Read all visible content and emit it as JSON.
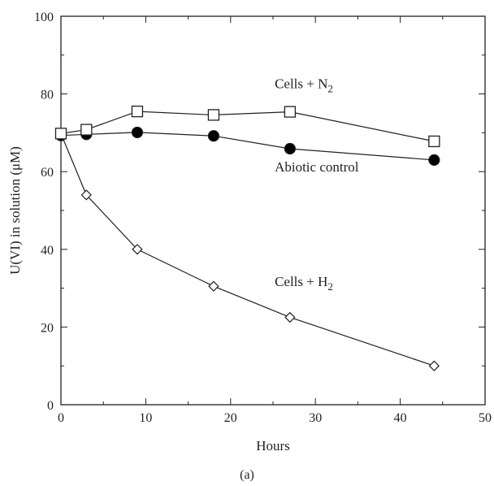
{
  "chart_data": {
    "type": "line",
    "xlabel": "Hours",
    "ylabel": "U(VI) in solution (μM)",
    "caption": "(a)",
    "xlim": [
      0,
      50
    ],
    "ylim": [
      0,
      100
    ],
    "xticks": [
      0,
      10,
      20,
      30,
      40,
      50
    ],
    "yticks": [
      0,
      20,
      40,
      60,
      80,
      100
    ],
    "grid": false,
    "series": [
      {
        "marker": "open-square",
        "x": [
          0,
          3,
          9,
          18,
          27,
          44
        ],
        "y": [
          69.8,
          70.8,
          75.5,
          74.6,
          75.4,
          67.8
        ],
        "error": [
          0,
          0,
          1.0,
          0,
          0.8,
          0
        ]
      },
      {
        "marker": "filled-circle",
        "x": [
          0,
          3,
          9,
          18,
          27,
          44
        ],
        "y": [
          69.3,
          69.6,
          70.1,
          69.2,
          65.9,
          63.0
        ],
        "error": [
          0,
          0,
          0,
          0,
          0,
          0
        ]
      },
      {
        "marker": "open-diamond",
        "x": [
          0,
          3,
          9,
          18,
          27,
          44
        ],
        "y": [
          69.8,
          54.0,
          40.0,
          30.5,
          22.5,
          10.0
        ],
        "error": [
          0,
          0,
          0,
          0,
          0,
          0
        ]
      }
    ],
    "annotations": [
      {
        "id": "n2",
        "main": "Cells + N",
        "sub": "2",
        "x": 25.2,
        "y": 81.5
      },
      {
        "id": "abiotic",
        "main": "Abiotic control",
        "sub": "",
        "x": 25.2,
        "y": 60.0
      },
      {
        "id": "h2",
        "main": "Cells + H",
        "sub": "2",
        "x": 25.2,
        "y": 30.5
      }
    ]
  }
}
